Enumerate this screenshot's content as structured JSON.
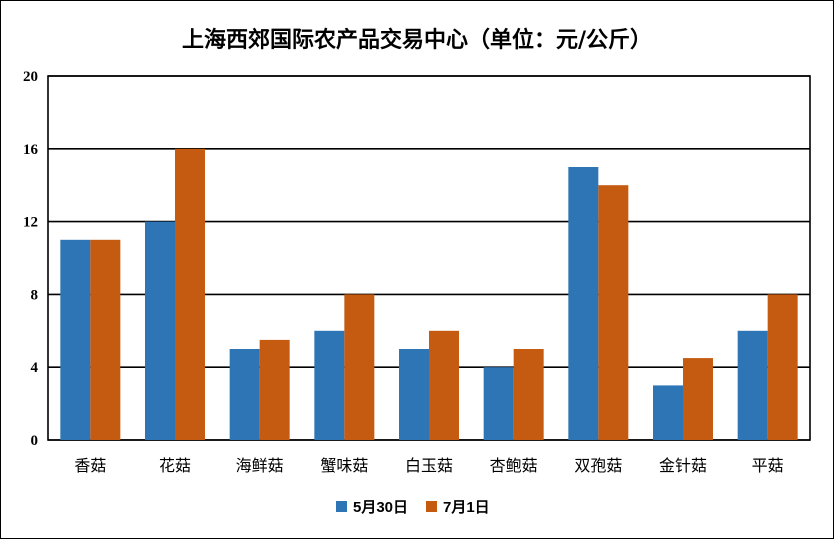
{
  "chart_data": {
    "type": "bar",
    "title": "上海西郊国际农产品交易中心（单位：元/公斤）",
    "categories": [
      "香菇",
      "花菇",
      "海鲜菇",
      "蟹味菇",
      "白玉菇",
      "杏鲍菇",
      "双孢菇",
      "金针菇",
      "平菇"
    ],
    "series": [
      {
        "name": "5月30日",
        "color": "#2e75b6",
        "values": [
          11,
          12,
          5,
          6,
          5,
          4,
          15,
          3,
          6
        ]
      },
      {
        "name": "7月1日",
        "color": "#c55a11",
        "values": [
          11,
          16,
          5.5,
          8,
          6,
          5,
          14,
          4.5,
          8
        ]
      }
    ],
    "ylim": [
      0,
      20
    ],
    "yticks": [
      0,
      4,
      8,
      12,
      16,
      20
    ],
    "grid": true,
    "legend_position": "bottom"
  }
}
